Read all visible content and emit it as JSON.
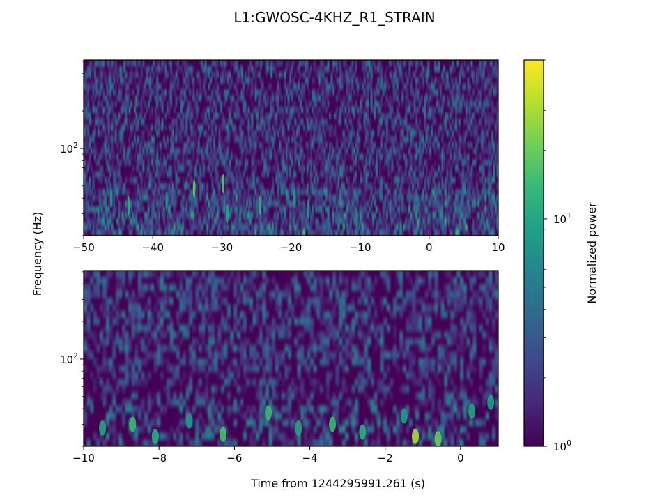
{
  "figure": {
    "title": "L1:GWOSC-4KHZ_R1_STRAIN",
    "ylabel": "Frequency (Hz)",
    "xlabel": "Time from 1244295991.261 (s)"
  },
  "colormap": {
    "name": "viridis",
    "stops": [
      "#440154",
      "#482878",
      "#3e4989",
      "#31688e",
      "#26828e",
      "#1f9e89",
      "#35b779",
      "#6ece58",
      "#b5de2b",
      "#fde725"
    ]
  },
  "chart_data": [
    {
      "type": "heatmap",
      "panel": "top",
      "x_range": [
        -50,
        10
      ],
      "x_ticks": [
        -50,
        -40,
        -30,
        -20,
        -10,
        0,
        10
      ],
      "x_tick_labels": [
        "−50",
        "−40",
        "−30",
        "−20",
        "−10",
        "0",
        "10"
      ],
      "y_scale": "log",
      "y_range": [
        20,
        512
      ],
      "y_major_tick": 100,
      "y_tick_label_base": "10",
      "y_tick_label_exp": "2",
      "color_scale": "log",
      "color_range": [
        1,
        50
      ],
      "notable_features": [
        {
          "x": -46,
          "y": 40,
          "power": 8
        },
        {
          "x": -43.5,
          "y": 35,
          "power": 12
        },
        {
          "x": -38,
          "y": 38,
          "power": 7
        },
        {
          "x": -34,
          "y": 48,
          "power": 20
        },
        {
          "x": -29.8,
          "y": 52,
          "power": 18
        },
        {
          "x": -29.2,
          "y": 30,
          "power": 10
        },
        {
          "x": -24.5,
          "y": 35,
          "power": 12
        },
        {
          "x": -19.5,
          "y": 40,
          "power": 9
        },
        {
          "x": -17.5,
          "y": 33,
          "power": 8
        },
        {
          "x": -10.5,
          "y": 28,
          "power": 6
        }
      ]
    },
    {
      "type": "heatmap",
      "panel": "bottom",
      "x_range": [
        -10,
        1
      ],
      "x_ticks": [
        -10,
        -8,
        -6,
        -4,
        -2,
        0
      ],
      "x_tick_labels": [
        "−10",
        "−8",
        "−6",
        "−4",
        "−2",
        "0"
      ],
      "y_scale": "log",
      "y_range": [
        20,
        512
      ],
      "y_major_tick": 100,
      "y_tick_label_base": "10",
      "y_tick_label_exp": "2",
      "color_scale": "log",
      "color_range": [
        1,
        50
      ],
      "notable_features": [
        {
          "x": -9.5,
          "y": 28,
          "power": 10
        },
        {
          "x": -8.7,
          "y": 30,
          "power": 14
        },
        {
          "x": -8.1,
          "y": 24,
          "power": 11
        },
        {
          "x": -7.2,
          "y": 32,
          "power": 8
        },
        {
          "x": -6.3,
          "y": 25,
          "power": 16
        },
        {
          "x": -5.1,
          "y": 37,
          "power": 14
        },
        {
          "x": -4.3,
          "y": 28,
          "power": 10
        },
        {
          "x": -3.4,
          "y": 30,
          "power": 14
        },
        {
          "x": -2.6,
          "y": 26,
          "power": 12
        },
        {
          "x": -1.5,
          "y": 35,
          "power": 9
        },
        {
          "x": -1.2,
          "y": 24,
          "power": 30
        },
        {
          "x": -0.6,
          "y": 23,
          "power": 20
        },
        {
          "x": 0.3,
          "y": 38,
          "power": 10
        },
        {
          "x": 0.8,
          "y": 45,
          "power": 9
        }
      ]
    }
  ],
  "colorbar": {
    "label": "Normalized power",
    "scale": "log",
    "range": [
      1,
      50
    ],
    "ticks": [
      {
        "value": 1,
        "base": "10",
        "exp": "0"
      },
      {
        "value": 10,
        "base": "10",
        "exp": "1"
      }
    ]
  }
}
